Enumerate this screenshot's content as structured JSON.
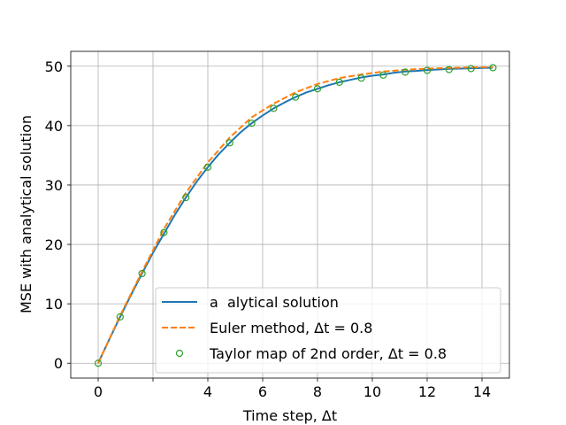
{
  "chart_data": {
    "type": "line",
    "title": "",
    "xlabel": "Time step, Δt",
    "ylabel": "MSE with analytical solution",
    "xlim": [
      -1.0,
      15.0
    ],
    "ylim": [
      -2.5,
      52.5
    ],
    "x_ticks": [
      0,
      2,
      4,
      6,
      8,
      10,
      12,
      14
    ],
    "x_tick_labels": [
      "0",
      "",
      "4",
      "6",
      "8",
      "10",
      "12",
      "14"
    ],
    "y_ticks": [
      0,
      10,
      20,
      30,
      40,
      50
    ],
    "y_tick_labels": [
      "0",
      "10",
      "20",
      "30",
      "40",
      "50"
    ],
    "grid": true,
    "legend_position": "lower-right",
    "colors": {
      "analytical": "#1f77b4",
      "euler": "#ff7f0e",
      "taylor": "#2ca02c"
    },
    "series": [
      {
        "name": "a  alytical solution",
        "style": "solid-line",
        "x": [
          0,
          0.4,
          0.8,
          1.2,
          1.6,
          2.0,
          2.4,
          2.8,
          3.2,
          3.6,
          4.0,
          4.4,
          4.8,
          5.2,
          5.6,
          6.0,
          6.4,
          6.8,
          7.2,
          7.6,
          8.0,
          8.4,
          8.8,
          9.2,
          9.6,
          10.0,
          10.4,
          10.8,
          11.2,
          11.6,
          12.0,
          12.4,
          12.8,
          13.2,
          13.6,
          14.0,
          14.4
        ],
        "values": [
          0,
          3.95,
          7.8,
          11.5,
          15.1,
          18.6,
          21.8,
          25.0,
          27.9,
          30.6,
          33.0,
          35.2,
          37.1,
          38.9,
          40.4,
          41.7,
          42.9,
          43.9,
          44.8,
          45.6,
          46.2,
          46.8,
          47.3,
          47.7,
          48.1,
          48.4,
          48.6,
          48.9,
          49.1,
          49.2,
          49.35,
          49.45,
          49.55,
          49.6,
          49.65,
          49.7,
          49.75
        ]
      },
      {
        "name": "Euler method, Δt = 0.8",
        "style": "dashed-line",
        "x": [
          0,
          0.8,
          1.6,
          2.4,
          3.2,
          4.0,
          4.8,
          5.6,
          6.4,
          7.2,
          8.0,
          8.8,
          9.6,
          10.4,
          11.2,
          12.0,
          12.8,
          13.6,
          14.4
        ],
        "values": [
          0,
          8.0,
          15.4,
          22.6,
          28.7,
          33.8,
          38.0,
          41.4,
          43.7,
          45.6,
          47.0,
          48.0,
          48.6,
          49.1,
          49.4,
          49.6,
          49.7,
          49.8,
          49.85
        ]
      },
      {
        "name": "Taylor map of 2nd order, Δt = 0.8",
        "style": "open-circles",
        "x": [
          0,
          0.8,
          1.6,
          2.4,
          3.2,
          4.0,
          4.8,
          5.6,
          6.4,
          7.2,
          8.0,
          8.8,
          9.6,
          10.4,
          11.2,
          12.0,
          12.8,
          13.6,
          14.4
        ],
        "values": [
          0,
          7.8,
          15.1,
          22.0,
          27.9,
          33.0,
          37.1,
          40.4,
          42.9,
          44.8,
          46.2,
          47.3,
          48.0,
          48.5,
          49.0,
          49.3,
          49.45,
          49.6,
          49.75
        ]
      }
    ]
  }
}
